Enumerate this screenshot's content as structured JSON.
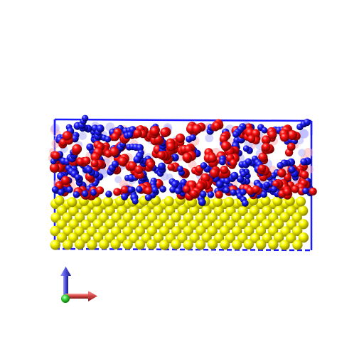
{
  "scene": {
    "background_color": "#ffffff",
    "box_color": "#1a1aff",
    "layers": [
      {
        "name": "metal-substrate",
        "color": "#ffff00",
        "shade": "#a09a00"
      },
      {
        "name": "ionic-liquid-anion",
        "color": "#ff1010",
        "shade": "#7a0000"
      },
      {
        "name": "ionic-liquid-cation",
        "color": "#2020ff",
        "shade": "#00006e"
      }
    ],
    "axes": [
      {
        "name": "x-axis",
        "color": "#e05050"
      },
      {
        "name": "y-axis",
        "color": "#30cc30"
      },
      {
        "name": "z-axis",
        "color": "#4a4adc"
      }
    ]
  }
}
